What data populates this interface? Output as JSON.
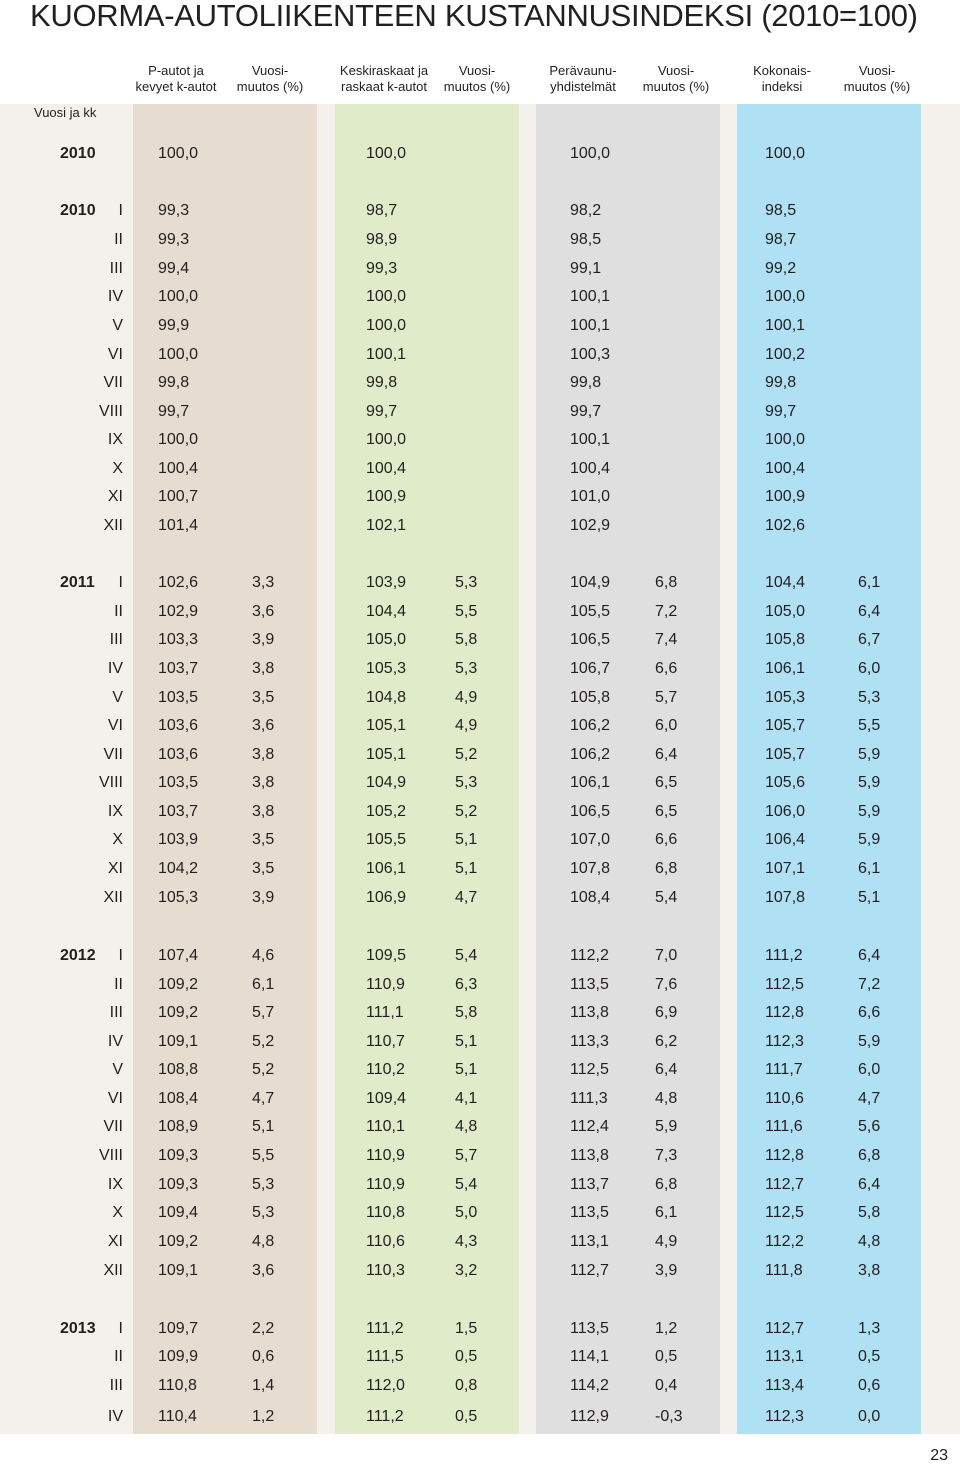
{
  "title": "KUORMA-AUTOLIIKENTEEN KUSTANNUSINDEKSI (2010=100)",
  "row_header": "Vuosi ja kk",
  "columns": [
    "P-autot ja\nkevyet k-autot",
    "Vuosi-\nmuutos (%)",
    "Keskiraskaat ja\nraskaat k-autot",
    "Vuosi-\nmuutos (%)",
    "Perävaunu-\nyhdistelmät",
    "Vuosi-\nmuutos (%)",
    "Kokonais-\nindeksi",
    "Vuosi-\nmuutos (%)"
  ],
  "colors": {
    "background": "#f4f1ec",
    "col_p_autot": "#e6ddd0",
    "col_keskiraskaat": "#e0ebca",
    "col_peravaunu": "#e0dfe0",
    "col_kokonais": "#afe0f4"
  },
  "rows": [
    {
      "year": "2010",
      "month": "",
      "v": [
        "100,0",
        "",
        "100,0",
        "",
        "100,0",
        "",
        "100,0",
        ""
      ]
    },
    {
      "year": "2010",
      "month": "I",
      "v": [
        "99,3",
        "",
        "98,7",
        "",
        "98,2",
        "",
        "98,5",
        ""
      ]
    },
    {
      "year": "",
      "month": "II",
      "v": [
        "99,3",
        "",
        "98,9",
        "",
        "98,5",
        "",
        "98,7",
        ""
      ]
    },
    {
      "year": "",
      "month": "III",
      "v": [
        "99,4",
        "",
        "99,3",
        "",
        "99,1",
        "",
        "99,2",
        ""
      ]
    },
    {
      "year": "",
      "month": "IV",
      "v": [
        "100,0",
        "",
        "100,0",
        "",
        "100,1",
        "",
        "100,0",
        ""
      ]
    },
    {
      "year": "",
      "month": "V",
      "v": [
        "99,9",
        "",
        "100,0",
        "",
        "100,1",
        "",
        "100,1",
        ""
      ]
    },
    {
      "year": "",
      "month": "VI",
      "v": [
        "100,0",
        "",
        "100,1",
        "",
        "100,3",
        "",
        "100,2",
        ""
      ]
    },
    {
      "year": "",
      "month": "VII",
      "v": [
        "99,8",
        "",
        "99,8",
        "",
        "99,8",
        "",
        "99,8",
        ""
      ]
    },
    {
      "year": "",
      "month": "VIII",
      "v": [
        "99,7",
        "",
        "99,7",
        "",
        "99,7",
        "",
        "99,7",
        ""
      ]
    },
    {
      "year": "",
      "month": "IX",
      "v": [
        "100,0",
        "",
        "100,0",
        "",
        "100,1",
        "",
        "100,0",
        ""
      ]
    },
    {
      "year": "",
      "month": "X",
      "v": [
        "100,4",
        "",
        "100,4",
        "",
        "100,4",
        "",
        "100,4",
        ""
      ]
    },
    {
      "year": "",
      "month": "XI",
      "v": [
        "100,7",
        "",
        "100,9",
        "",
        "101,0",
        "",
        "100,9",
        ""
      ]
    },
    {
      "year": "",
      "month": "XII",
      "v": [
        "101,4",
        "",
        "102,1",
        "",
        "102,9",
        "",
        "102,6",
        ""
      ]
    },
    {
      "year": "2011",
      "month": "I",
      "v": [
        "102,6",
        "3,3",
        "103,9",
        "5,3",
        "104,9",
        "6,8",
        "104,4",
        "6,1"
      ]
    },
    {
      "year": "",
      "month": "II",
      "v": [
        "102,9",
        "3,6",
        "104,4",
        "5,5",
        "105,5",
        "7,2",
        "105,0",
        "6,4"
      ]
    },
    {
      "year": "",
      "month": "III",
      "v": [
        "103,3",
        "3,9",
        "105,0",
        "5,8",
        "106,5",
        "7,4",
        "105,8",
        "6,7"
      ]
    },
    {
      "year": "",
      "month": "IV",
      "v": [
        "103,7",
        "3,8",
        "105,3",
        "5,3",
        "106,7",
        "6,6",
        "106,1",
        "6,0"
      ]
    },
    {
      "year": "",
      "month": "V",
      "v": [
        "103,5",
        "3,5",
        "104,8",
        "4,9",
        "105,8",
        "5,7",
        "105,3",
        "5,3"
      ]
    },
    {
      "year": "",
      "month": "VI",
      "v": [
        "103,6",
        "3,6",
        "105,1",
        "4,9",
        "106,2",
        "6,0",
        "105,7",
        "5,5"
      ]
    },
    {
      "year": "",
      "month": "VII",
      "v": [
        "103,6",
        "3,8",
        "105,1",
        "5,2",
        "106,2",
        "6,4",
        "105,7",
        "5,9"
      ]
    },
    {
      "year": "",
      "month": "VIII",
      "v": [
        "103,5",
        "3,8",
        "104,9",
        "5,3",
        "106,1",
        "6,5",
        "105,6",
        "5,9"
      ]
    },
    {
      "year": "",
      "month": "IX",
      "v": [
        "103,7",
        "3,8",
        "105,2",
        "5,2",
        "106,5",
        "6,5",
        "106,0",
        "5,9"
      ]
    },
    {
      "year": "",
      "month": "X",
      "v": [
        "103,9",
        "3,5",
        "105,5",
        "5,1",
        "107,0",
        "6,6",
        "106,4",
        "5,9"
      ]
    },
    {
      "year": "",
      "month": "XI",
      "v": [
        "104,2",
        "3,5",
        "106,1",
        "5,1",
        "107,8",
        "6,8",
        "107,1",
        "6,1"
      ]
    },
    {
      "year": "",
      "month": "XII",
      "v": [
        "105,3",
        "3,9",
        "106,9",
        "4,7",
        "108,4",
        "5,4",
        "107,8",
        "5,1"
      ]
    },
    {
      "year": "2012",
      "month": "I",
      "v": [
        "107,4",
        "4,6",
        "109,5",
        "5,4",
        "112,2",
        "7,0",
        "111,2",
        "6,4"
      ]
    },
    {
      "year": "",
      "month": "II",
      "v": [
        "109,2",
        "6,1",
        "110,9",
        "6,3",
        "113,5",
        "7,6",
        "112,5",
        "7,2"
      ]
    },
    {
      "year": "",
      "month": "III",
      "v": [
        "109,2",
        "5,7",
        "111,1",
        "5,8",
        "113,8",
        "6,9",
        "112,8",
        "6,6"
      ]
    },
    {
      "year": "",
      "month": "IV",
      "v": [
        "109,1",
        "5,2",
        "110,7",
        "5,1",
        "113,3",
        "6,2",
        "112,3",
        "5,9"
      ]
    },
    {
      "year": "",
      "month": "V",
      "v": [
        "108,8",
        "5,2",
        "110,2",
        "5,1",
        "112,5",
        "6,4",
        "111,7",
        "6,0"
      ]
    },
    {
      "year": "",
      "month": "VI",
      "v": [
        "108,4",
        "4,7",
        "109,4",
        "4,1",
        "111,3",
        "4,8",
        "110,6",
        "4,7"
      ]
    },
    {
      "year": "",
      "month": "VII",
      "v": [
        "108,9",
        "5,1",
        "110,1",
        "4,8",
        "112,4",
        "5,9",
        "111,6",
        "5,6"
      ]
    },
    {
      "year": "",
      "month": "VIII",
      "v": [
        "109,3",
        "5,5",
        "110,9",
        "5,7",
        "113,8",
        "7,3",
        "112,8",
        "6,8"
      ]
    },
    {
      "year": "",
      "month": "IX",
      "v": [
        "109,3",
        "5,3",
        "110,9",
        "5,4",
        "113,7",
        "6,8",
        "112,7",
        "6,4"
      ]
    },
    {
      "year": "",
      "month": "X",
      "v": [
        "109,4",
        "5,3",
        "110,8",
        "5,0",
        "113,5",
        "6,1",
        "112,5",
        "5,8"
      ]
    },
    {
      "year": "",
      "month": "XI",
      "v": [
        "109,2",
        "4,8",
        "110,6",
        "4,3",
        "113,1",
        "4,9",
        "112,2",
        "4,8"
      ]
    },
    {
      "year": "",
      "month": "XII",
      "v": [
        "109,1",
        "3,6",
        "110,3",
        "3,2",
        "112,7",
        "3,9",
        "111,8",
        "3,8"
      ]
    },
    {
      "year": "2013",
      "month": "I",
      "v": [
        "109,7",
        "2,2",
        "111,2",
        "1,5",
        "113,5",
        "1,2",
        "112,7",
        "1,3"
      ]
    },
    {
      "year": "",
      "month": "II",
      "v": [
        "109,9",
        "0,6",
        "111,5",
        "0,5",
        "114,1",
        "0,5",
        "113,1",
        "0,5"
      ]
    },
    {
      "year": "",
      "month": "III",
      "v": [
        "110,8",
        "1,4",
        "112,0",
        "0,8",
        "114,2",
        "0,4",
        "113,4",
        "0,6"
      ]
    },
    {
      "year": "",
      "month": "IV",
      "v": [
        "110,4",
        "1,2",
        "111,2",
        "0,5",
        "112,9",
        "-0,3",
        "112,3",
        "0,0"
      ]
    }
  ],
  "page_number": "23"
}
